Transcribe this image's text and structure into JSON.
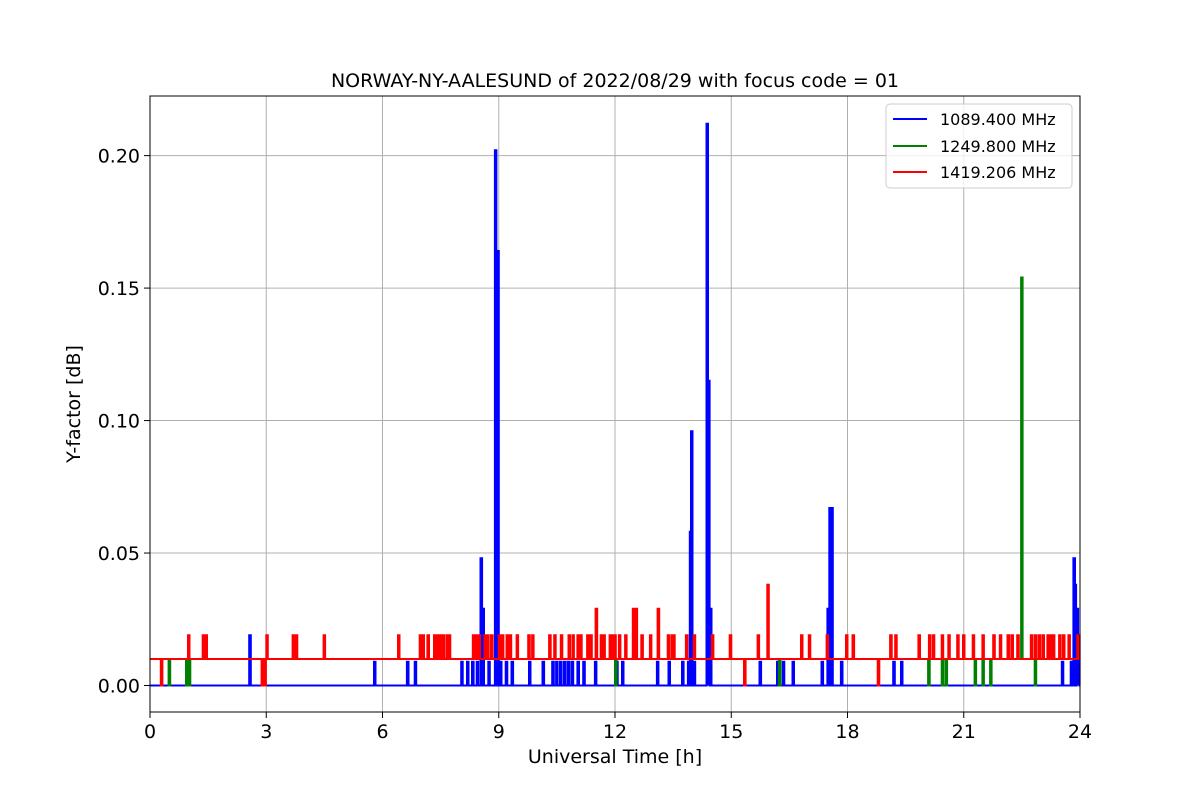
{
  "chart_data": {
    "type": "line",
    "title": "NORWAY-NY-AALESUND of 2022/08/29 with focus code = 01",
    "xlabel": "Universal Time [h]",
    "ylabel": "Y-factor [dB]",
    "xlim": [
      0,
      24
    ],
    "ylim": [
      -0.01,
      0.2225
    ],
    "x_ticks": [
      0,
      3,
      6,
      9,
      12,
      15,
      18,
      21,
      24
    ],
    "x_tick_labels": [
      "0",
      "3",
      "6",
      "9",
      "12",
      "15",
      "18",
      "21",
      "24"
    ],
    "y_ticks": [
      0.0,
      0.05,
      0.1,
      0.15,
      0.2
    ],
    "y_tick_labels": [
      "0.00",
      "0.05",
      "0.10",
      "0.15",
      "0.20"
    ],
    "grid": true,
    "legend_position": "top-right",
    "series": [
      {
        "name": "1089.400 MHz",
        "color": "#0000ff",
        "baseline": 0.0,
        "spikes": [
          [
            2.58,
            0.019
          ],
          [
            5.8,
            0.009
          ],
          [
            6.65,
            0.009
          ],
          [
            6.85,
            0.009
          ],
          [
            8.05,
            0.009
          ],
          [
            8.2,
            0.009
          ],
          [
            8.33,
            0.009
          ],
          [
            8.45,
            0.009
          ],
          [
            8.55,
            0.048
          ],
          [
            8.6,
            0.029
          ],
          [
            8.75,
            0.009
          ],
          [
            8.92,
            0.202
          ],
          [
            8.98,
            0.164
          ],
          [
            9.05,
            0.009
          ],
          [
            9.2,
            0.009
          ],
          [
            9.35,
            0.009
          ],
          [
            9.8,
            0.009
          ],
          [
            10.15,
            0.009
          ],
          [
            10.4,
            0.009
          ],
          [
            10.5,
            0.009
          ],
          [
            10.6,
            0.009
          ],
          [
            10.7,
            0.009
          ],
          [
            10.8,
            0.009
          ],
          [
            10.9,
            0.009
          ],
          [
            11.05,
            0.009
          ],
          [
            11.2,
            0.009
          ],
          [
            11.5,
            0.009
          ],
          [
            12.05,
            0.009
          ],
          [
            12.2,
            0.009
          ],
          [
            13.1,
            0.009
          ],
          [
            13.4,
            0.009
          ],
          [
            13.75,
            0.009
          ],
          [
            13.9,
            0.009
          ],
          [
            13.95,
            0.058
          ],
          [
            13.98,
            0.096
          ],
          [
            14.05,
            0.009
          ],
          [
            14.38,
            0.212
          ],
          [
            14.42,
            0.115
          ],
          [
            14.47,
            0.029
          ],
          [
            15.75,
            0.009
          ],
          [
            16.2,
            0.009
          ],
          [
            16.35,
            0.009
          ],
          [
            16.6,
            0.009
          ],
          [
            17.35,
            0.009
          ],
          [
            17.5,
            0.029
          ],
          [
            17.55,
            0.067
          ],
          [
            17.6,
            0.067
          ],
          [
            17.85,
            0.009
          ],
          [
            19.2,
            0.009
          ],
          [
            19.4,
            0.009
          ],
          [
            23.55,
            0.009
          ],
          [
            23.78,
            0.009
          ],
          [
            23.85,
            0.048
          ],
          [
            23.88,
            0.038
          ],
          [
            23.93,
            0.029
          ],
          [
            23.97,
            0.019
          ]
        ]
      },
      {
        "name": "1249.800 MHz",
        "color": "#008000",
        "baseline": 0.01,
        "spikes": [
          [
            0.5,
            0.0
          ],
          [
            0.95,
            0.0
          ],
          [
            1.02,
            0.0
          ],
          [
            12.02,
            0.0
          ],
          [
            16.25,
            0.0
          ],
          [
            20.1,
            0.0
          ],
          [
            20.45,
            0.0
          ],
          [
            20.55,
            0.0
          ],
          [
            21.3,
            0.0
          ],
          [
            21.5,
            0.0
          ],
          [
            21.7,
            0.0
          ],
          [
            22.5,
            0.154
          ],
          [
            22.85,
            0.0
          ]
        ]
      },
      {
        "name": "1419.206 MHz",
        "color": "#ff0000",
        "baseline": 0.01,
        "spikes": [
          [
            0.3,
            0.0
          ],
          [
            1.0,
            0.019
          ],
          [
            1.38,
            0.019
          ],
          [
            1.45,
            0.019
          ],
          [
            2.9,
            0.0
          ],
          [
            2.97,
            0.0
          ],
          [
            3.02,
            0.019
          ],
          [
            3.7,
            0.019
          ],
          [
            3.78,
            0.019
          ],
          [
            4.5,
            0.019
          ],
          [
            6.42,
            0.019
          ],
          [
            6.98,
            0.019
          ],
          [
            7.05,
            0.019
          ],
          [
            7.18,
            0.019
          ],
          [
            7.35,
            0.019
          ],
          [
            7.42,
            0.019
          ],
          [
            7.5,
            0.019
          ],
          [
            7.58,
            0.019
          ],
          [
            7.68,
            0.019
          ],
          [
            7.73,
            0.019
          ],
          [
            8.35,
            0.019
          ],
          [
            8.42,
            0.019
          ],
          [
            8.5,
            0.019
          ],
          [
            8.65,
            0.019
          ],
          [
            8.72,
            0.019
          ],
          [
            8.82,
            0.019
          ],
          [
            9.02,
            0.019
          ],
          [
            9.1,
            0.019
          ],
          [
            9.22,
            0.019
          ],
          [
            9.3,
            0.019
          ],
          [
            9.48,
            0.019
          ],
          [
            9.78,
            0.019
          ],
          [
            9.88,
            0.019
          ],
          [
            10.32,
            0.019
          ],
          [
            10.45,
            0.019
          ],
          [
            10.62,
            0.019
          ],
          [
            10.82,
            0.019
          ],
          [
            10.92,
            0.019
          ],
          [
            11.05,
            0.019
          ],
          [
            11.12,
            0.019
          ],
          [
            11.3,
            0.019
          ],
          [
            11.38,
            0.019
          ],
          [
            11.52,
            0.029
          ],
          [
            11.65,
            0.019
          ],
          [
            11.72,
            0.019
          ],
          [
            11.88,
            0.019
          ],
          [
            11.95,
            0.019
          ],
          [
            12.0,
            0.019
          ],
          [
            12.12,
            0.019
          ],
          [
            12.28,
            0.019
          ],
          [
            12.48,
            0.029
          ],
          [
            12.55,
            0.029
          ],
          [
            12.7,
            0.019
          ],
          [
            12.92,
            0.019
          ],
          [
            13.12,
            0.029
          ],
          [
            13.38,
            0.019
          ],
          [
            13.48,
            0.019
          ],
          [
            13.52,
            0.019
          ],
          [
            13.85,
            0.019
          ],
          [
            14.05,
            0.019
          ],
          [
            14.52,
            0.019
          ],
          [
            14.98,
            0.019
          ],
          [
            15.35,
            0.0
          ],
          [
            15.7,
            0.019
          ],
          [
            15.95,
            0.038
          ],
          [
            16.82,
            0.019
          ],
          [
            17.02,
            0.019
          ],
          [
            17.48,
            0.019
          ],
          [
            17.98,
            0.019
          ],
          [
            18.15,
            0.019
          ],
          [
            18.8,
            0.0
          ],
          [
            19.12,
            0.019
          ],
          [
            19.25,
            0.019
          ],
          [
            19.85,
            0.019
          ],
          [
            20.12,
            0.019
          ],
          [
            20.22,
            0.019
          ],
          [
            20.45,
            0.019
          ],
          [
            20.62,
            0.019
          ],
          [
            20.85,
            0.019
          ],
          [
            21.0,
            0.019
          ],
          [
            21.25,
            0.019
          ],
          [
            21.5,
            0.019
          ],
          [
            21.78,
            0.019
          ],
          [
            21.95,
            0.019
          ],
          [
            22.15,
            0.019
          ],
          [
            22.25,
            0.019
          ],
          [
            22.4,
            0.019
          ],
          [
            22.75,
            0.019
          ],
          [
            22.85,
            0.019
          ],
          [
            22.95,
            0.019
          ],
          [
            23.05,
            0.019
          ],
          [
            23.18,
            0.019
          ],
          [
            23.25,
            0.019
          ],
          [
            23.32,
            0.019
          ],
          [
            23.48,
            0.019
          ],
          [
            23.58,
            0.019
          ],
          [
            23.72,
            0.019
          ],
          [
            23.95,
            0.019
          ]
        ]
      }
    ]
  }
}
